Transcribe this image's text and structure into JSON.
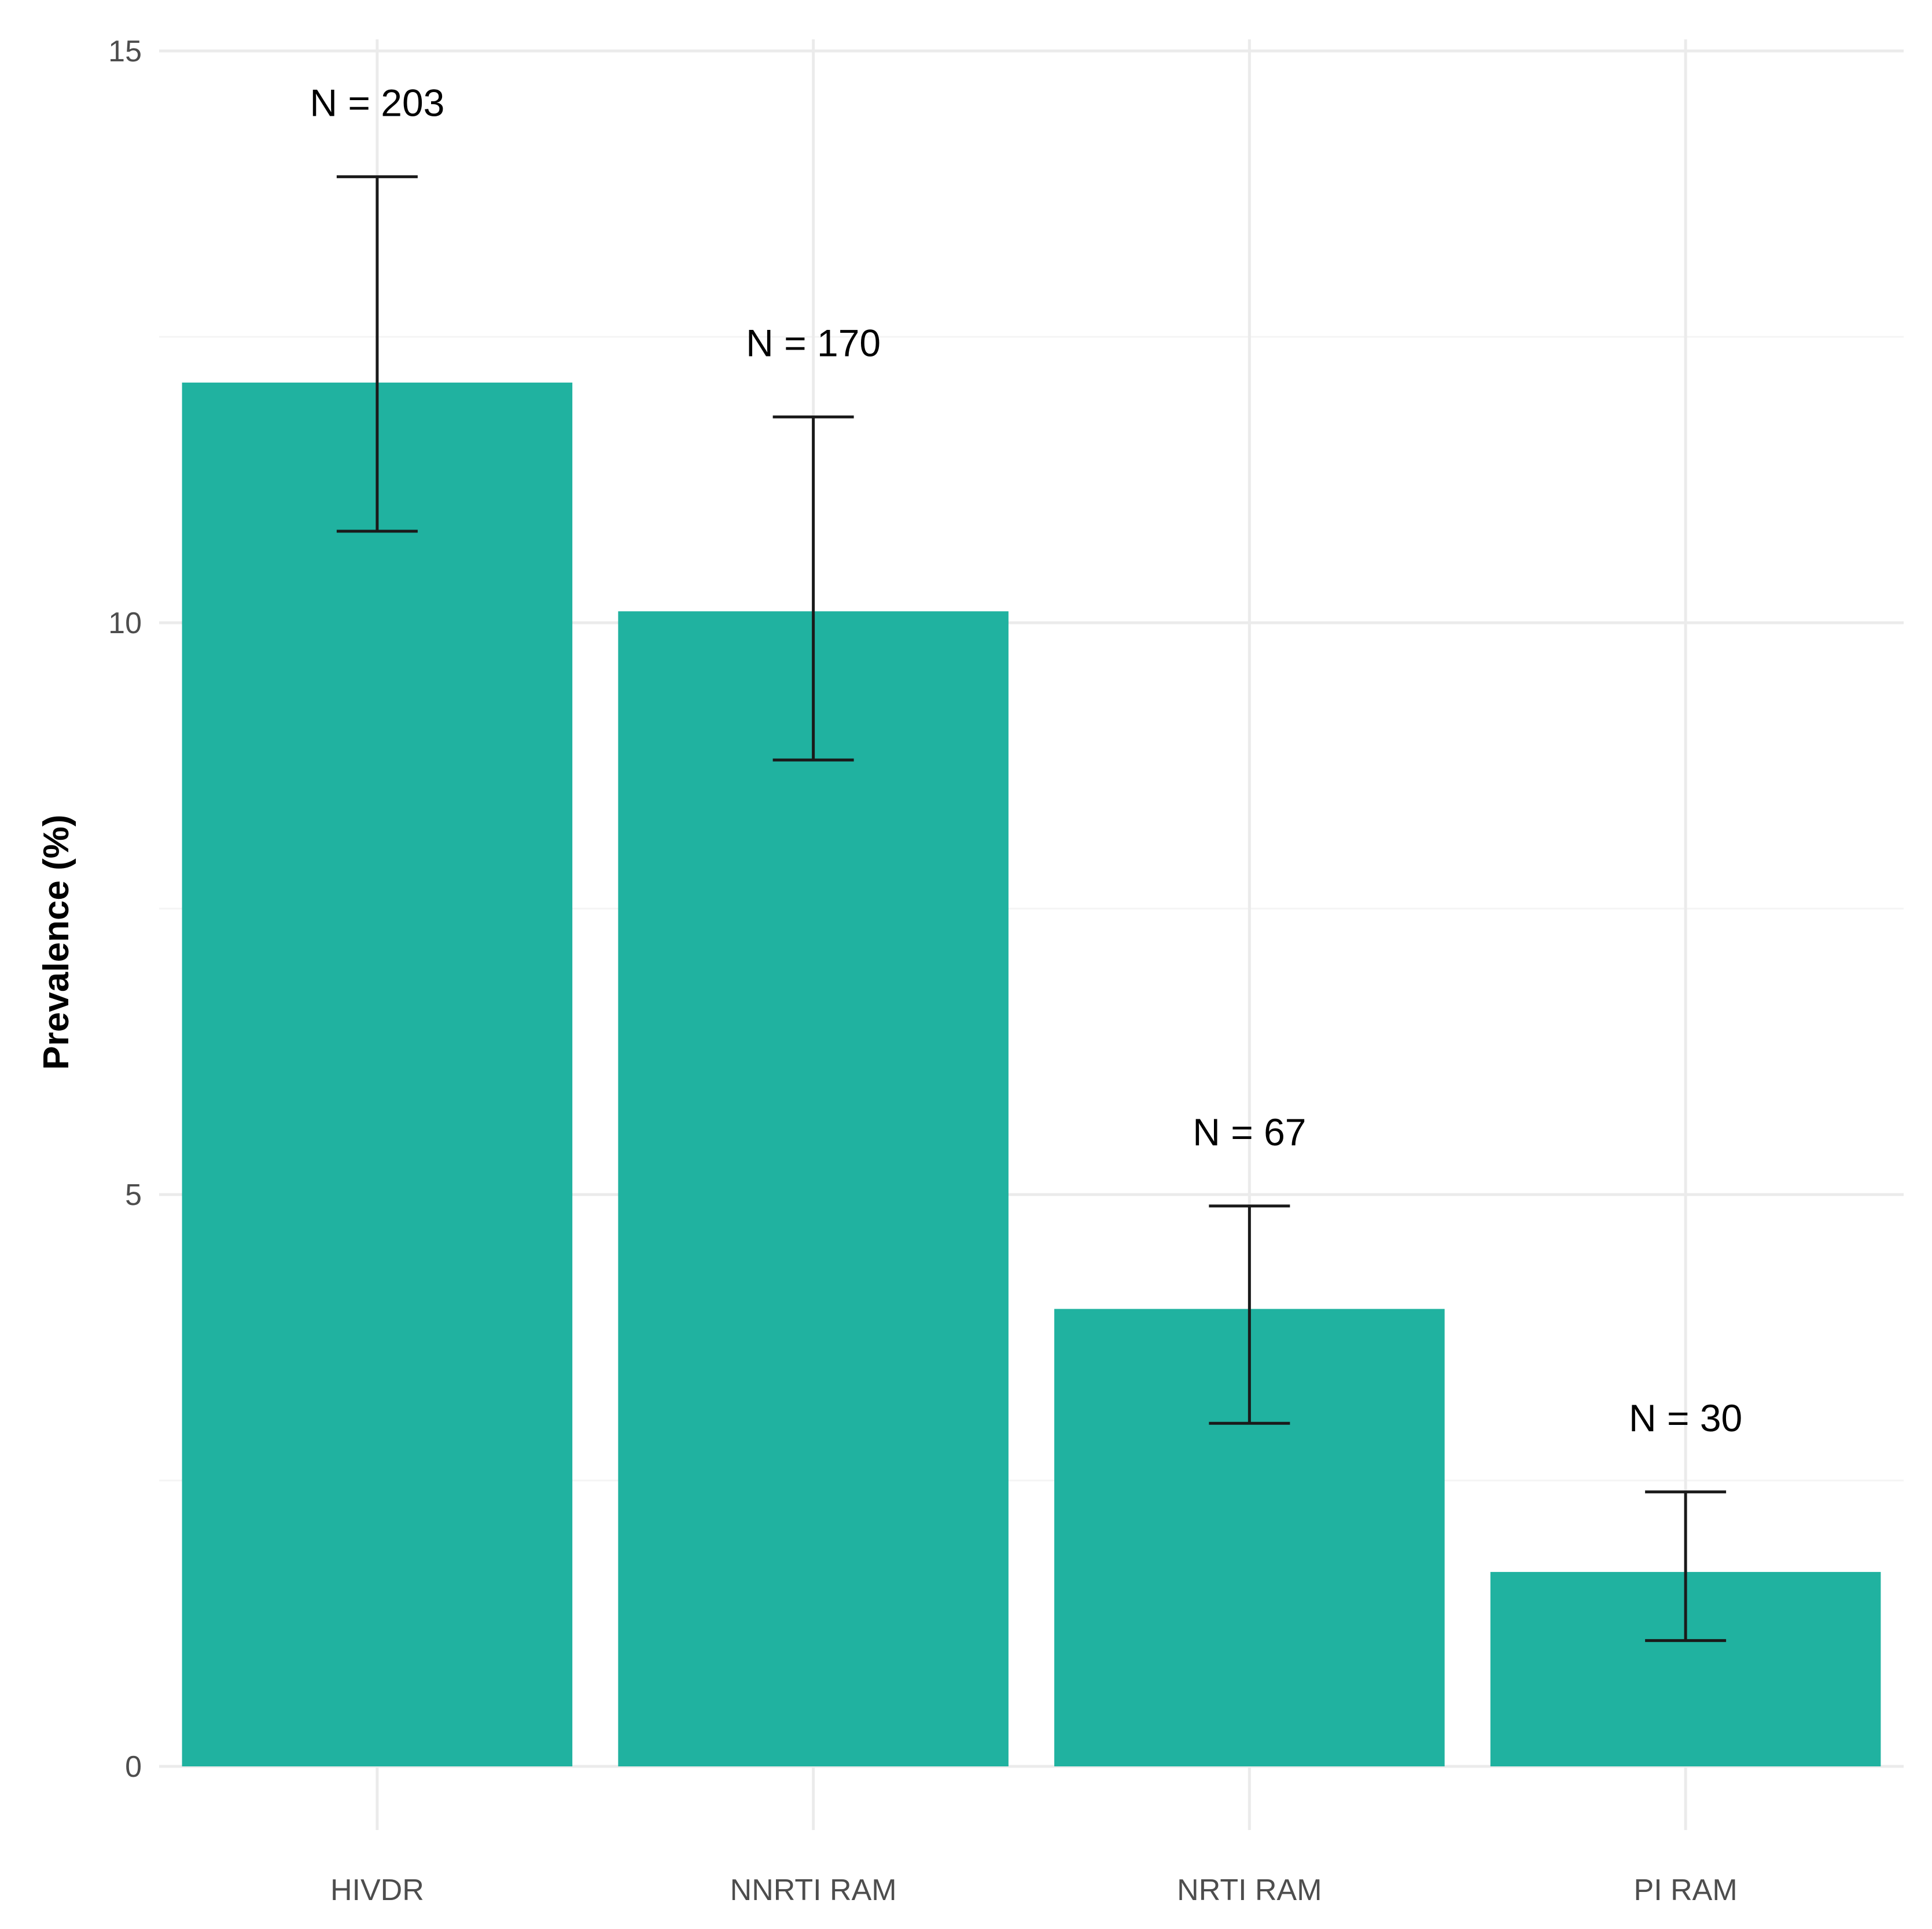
{
  "chart_data": {
    "type": "bar",
    "title": "",
    "xlabel": "",
    "ylabel": "Prevalence (%)",
    "categories": [
      "HIVDR",
      "NNRTI RAM",
      "NRTI RAM",
      "PI RAM"
    ],
    "values": [
      12.1,
      10.1,
      4.0,
      1.7
    ],
    "error_low": [
      10.8,
      8.8,
      3.0,
      1.1
    ],
    "error_high": [
      13.9,
      11.8,
      4.9,
      2.4
    ],
    "data_labels": [
      "N = 203",
      "N = 170",
      "N = 67",
      "N = 30"
    ],
    "ylim": [
      0,
      15
    ],
    "yticks": [
      0,
      5,
      10,
      15
    ],
    "grid": true,
    "legend": "none",
    "bar_color": "#20b2a0"
  }
}
